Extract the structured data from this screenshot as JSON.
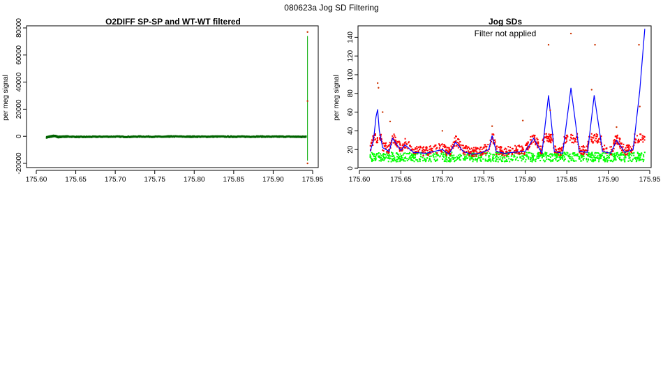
{
  "page_title": "080623a   Jog SD Filtering",
  "chart_data": [
    {
      "type": "scatter",
      "title": "O2DIFF SP-SP and WT-WT filtered",
      "xlabel": "",
      "ylabel": "per meg signal",
      "xlim": [
        175.6,
        175.95
      ],
      "ylim": [
        -20000,
        80000
      ],
      "x_ticks": [
        "175.60",
        "175.65",
        "175.70",
        "175.75",
        "175.80",
        "175.85",
        "175.90",
        "175.95"
      ],
      "x_tick_values": [
        175.6,
        175.65,
        175.7,
        175.75,
        175.8,
        175.85,
        175.9,
        175.95
      ],
      "y_ticks": [
        "-20000",
        "0",
        "20000",
        "40000",
        "60000",
        "80000"
      ],
      "y_tick_values": [
        -20000,
        0,
        20000,
        40000,
        60000,
        80000
      ],
      "colors": {
        "points": "#006400",
        "spike_line": "#00aa00",
        "outlier": "#cc3300"
      },
      "series": [
        {
          "x": [
            175.613,
            175.616,
            175.619,
            175.622,
            175.625,
            175.628,
            175.632,
            175.64,
            175.655,
            175.668,
            175.683,
            175.7,
            175.716,
            175.731,
            175.748,
            175.764,
            175.772,
            175.79,
            175.8,
            175.815,
            175.828,
            175.845,
            175.855,
            175.868,
            175.883,
            175.898,
            175.91,
            175.925,
            175.935,
            175.942
          ],
          "y": [
            -800,
            -400,
            -100,
            300,
            0,
            -600,
            -300,
            -200,
            -500,
            -400,
            -300,
            -250,
            -400,
            -200,
            -300,
            -350,
            -100,
            -300,
            -250,
            -300,
            -200,
            -300,
            -250,
            -300,
            -200,
            -300,
            -250,
            -300,
            -400,
            -200
          ]
        }
      ],
      "spike": {
        "x": 175.9435,
        "y_min": -18000,
        "y_max": 74000,
        "outliers": [
          77000,
          26000,
          -20000
        ]
      }
    },
    {
      "type": "line",
      "title": "Jog SDs",
      "annotation": "Filter not applied",
      "xlabel": "",
      "ylabel": "per meg signal",
      "xlim": [
        175.6,
        175.95
      ],
      "ylim": [
        0,
        150
      ],
      "x_ticks": [
        "175.60",
        "175.65",
        "175.70",
        "175.75",
        "175.80",
        "175.85",
        "175.90",
        "175.95"
      ],
      "x_tick_values": [
        175.6,
        175.65,
        175.7,
        175.75,
        175.8,
        175.85,
        175.9,
        175.95
      ],
      "y_ticks": [
        "0",
        "20",
        "40",
        "60",
        "80",
        "100",
        "120",
        "140"
      ],
      "y_tick_values": [
        0,
        20,
        40,
        60,
        80,
        100,
        120,
        140
      ],
      "colors": {
        "upper_points": "#ff0000",
        "lower_points": "#00ff00",
        "line": "#0000ff",
        "outliers": "#cc3300"
      },
      "series": [
        {
          "name": "",
          "x": [
            175.613,
            175.617,
            175.62,
            175.622,
            175.624,
            175.628,
            175.632,
            175.636,
            175.64,
            175.65,
            175.655,
            175.665,
            175.68,
            175.69,
            175.7,
            175.708,
            175.716,
            175.725,
            175.735,
            175.745,
            175.756,
            175.76,
            175.765,
            175.775,
            175.785,
            175.8,
            175.81,
            175.82,
            175.828,
            175.835,
            175.845,
            175.855,
            175.865,
            175.875,
            175.883,
            175.893,
            175.903,
            175.91,
            175.92,
            175.93,
            175.938,
            175.944
          ],
          "y": [
            18,
            30,
            55,
            63,
            40,
            22,
            20,
            18,
            32,
            19,
            25,
            17,
            16,
            18,
            20,
            15,
            28,
            18,
            15,
            16,
            20,
            35,
            18,
            16,
            17,
            18,
            32,
            16,
            78,
            18,
            16,
            86,
            18,
            17,
            78,
            18,
            16,
            30,
            17,
            20,
            83,
            149
          ]
        }
      ]
    }
  ]
}
